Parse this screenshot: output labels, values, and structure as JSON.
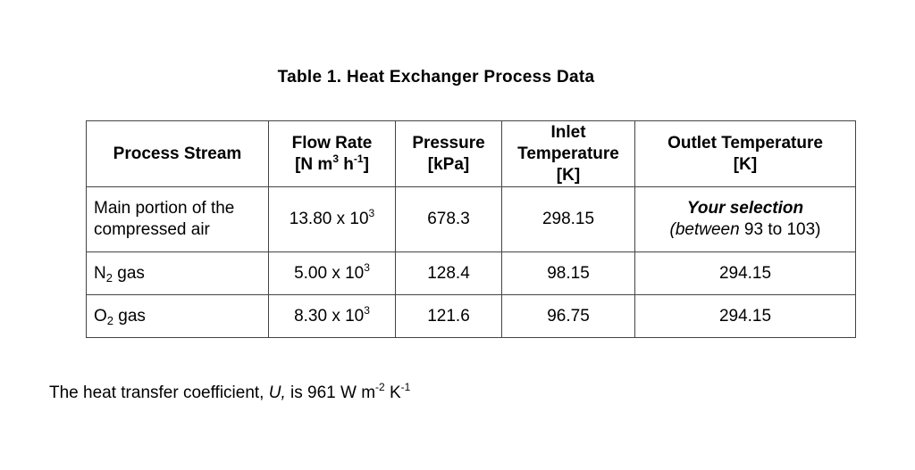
{
  "title": "Table 1. Heat Exchanger Process Data",
  "headers": {
    "stream": "Process Stream",
    "flow": {
      "label": "Flow Rate",
      "unit_pre": "[N m",
      "unit_sup1": "3",
      "unit_mid": " h",
      "unit_sup2": "-1",
      "unit_post": "]"
    },
    "pressure": {
      "label": "Pressure",
      "unit": "[kPa]"
    },
    "inlet": {
      "label1": "Inlet",
      "label2": "Temperature",
      "unit": "[K]"
    },
    "outlet": {
      "label": "Outlet Temperature",
      "unit": "[K]"
    }
  },
  "rows": [
    {
      "stream_line1": "Main portion of the",
      "stream_line2": "compressed air",
      "flow_base": "13.80 x 10",
      "flow_exp": "3",
      "pressure": "678.3",
      "inlet": "298.15",
      "outlet_title": "Your selection",
      "outlet_open": "(",
      "outlet_word": "between",
      "outlet_range": " 93 to 103)"
    },
    {
      "stream_prefix": "N",
      "stream_sub": "2",
      "stream_suffix": " gas",
      "flow_base": "5.00 x 10",
      "flow_exp": "3",
      "pressure": "128.4",
      "inlet": "98.15",
      "outlet": "294.15"
    },
    {
      "stream_prefix": "O",
      "stream_sub": "2",
      "stream_suffix": " gas",
      "flow_base": "8.30 x 10",
      "flow_exp": "3",
      "pressure": "121.6",
      "inlet": "96.75",
      "outlet": "294.15"
    }
  ],
  "footnote": {
    "pre": "The heat transfer coefficient, ",
    "symbol": "U,",
    "mid": " is 961 W m",
    "sup1": "-2",
    "mid2": " K",
    "sup2": "-1"
  }
}
